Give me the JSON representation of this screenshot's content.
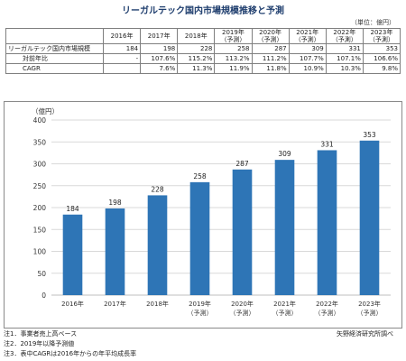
{
  "title": "リーガルテック国内市場規模推移と予測",
  "unit_note": "（単位：億円）",
  "table": {
    "columns": [
      [
        "2016年"
      ],
      [
        "2017年"
      ],
      [
        "2018年"
      ],
      [
        "2019年",
        "（予測）"
      ],
      [
        "2020年",
        "（予測）"
      ],
      [
        "2021年",
        "（予測）"
      ],
      [
        "2022年",
        "（予測）"
      ],
      [
        "2023年",
        "（予測）"
      ]
    ],
    "rows": [
      {
        "label": "リーガルテック国内市場規模",
        "indent": false,
        "values": [
          "184",
          "198",
          "228",
          "258",
          "287",
          "309",
          "331",
          "353"
        ]
      },
      {
        "label": "対前年比",
        "indent": true,
        "values": [
          "-",
          "107.6%",
          "115.2%",
          "113.2%",
          "111.2%",
          "107.7%",
          "107.1%",
          "106.6%"
        ]
      },
      {
        "label": "CAGR",
        "indent": true,
        "values": [
          "",
          "7.6%",
          "11.3%",
          "11.9%",
          "11.8%",
          "10.9%",
          "10.3%",
          "9.8%"
        ]
      }
    ]
  },
  "chart_data": {
    "type": "bar",
    "title": "",
    "ylabel": "（億円）",
    "xlabel": "",
    "ylim": [
      0,
      400
    ],
    "y_ticks": [
      0,
      50,
      100,
      150,
      200,
      250,
      300,
      350,
      400
    ],
    "categories": [
      [
        "2016年"
      ],
      [
        "2017年"
      ],
      [
        "2018年"
      ],
      [
        "2019年",
        "（予測）"
      ],
      [
        "2020年",
        "（予測）"
      ],
      [
        "2021年",
        "（予測）"
      ],
      [
        "2022年",
        "（予測）"
      ],
      [
        "2023年",
        "（予測）"
      ]
    ],
    "values": [
      184,
      198,
      228,
      258,
      287,
      309,
      331,
      353
    ],
    "bar_color": "#2e75b6",
    "grid": true,
    "legend": "none"
  },
  "notes": [
    "注1．事業者売上高ベース",
    "注2．2019年以降予測値",
    "注3．表中CAGRは2016年からの年平均成長率"
  ],
  "source": "矢野経済研究所調べ"
}
